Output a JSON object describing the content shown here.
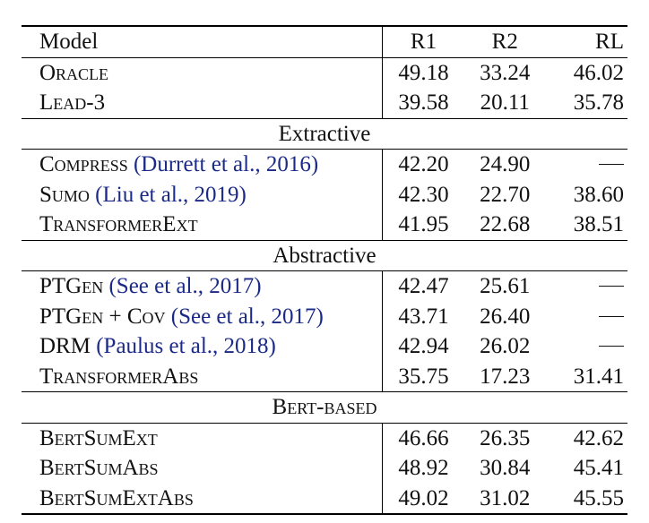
{
  "table": {
    "headers": [
      "Model",
      "R1",
      "R2",
      "RL"
    ],
    "dash": "—",
    "rows_top": [
      {
        "name": "Oracle",
        "cite": "",
        "r1": "49.18",
        "r2": "33.24",
        "rl": "46.02"
      },
      {
        "name": "Lead-3",
        "cite": "",
        "r1": "39.58",
        "r2": "20.11",
        "rl": "35.78"
      }
    ],
    "sections": [
      {
        "title": "Extractive",
        "rows": [
          {
            "name": "Compress",
            "cite": "(Durrett et al., 2016)",
            "r1": "42.20",
            "r2": "24.90",
            "rl": "—"
          },
          {
            "name": "Sumo",
            "cite": "(Liu et al., 2019)",
            "r1": "42.30",
            "r2": "22.70",
            "rl": "38.60"
          },
          {
            "name": "TransformerExt",
            "cite": "",
            "r1": "41.95",
            "r2": "22.68",
            "rl": "38.51"
          }
        ]
      },
      {
        "title": "Abstractive",
        "rows": [
          {
            "name": "PTGen",
            "cite": "(See et al., 2017)",
            "r1": "42.47",
            "r2": "25.61",
            "rl": "—"
          },
          {
            "name": "PTGen + Cov",
            "cite": "(See et al., 2017)",
            "r1": "43.71",
            "r2": "26.40",
            "rl": "—"
          },
          {
            "name": "DRM",
            "cite": "(Paulus et al., 2018)",
            "r1": "42.94",
            "r2": "26.02",
            "rl": "—"
          },
          {
            "name": "TransformerAbs",
            "cite": "",
            "r1": "35.75",
            "r2": "17.23",
            "rl": "31.41"
          }
        ]
      },
      {
        "title": "Bert-based",
        "rows": [
          {
            "name": "BertSumExt",
            "cite": "",
            "r1": "46.66",
            "r2": "26.35",
            "rl": "42.62"
          },
          {
            "name": "BertSumAbs",
            "cite": "",
            "r1": "48.92",
            "r2": "30.84",
            "rl": "45.41"
          },
          {
            "name": "BertSumExtAbs",
            "cite": "",
            "r1": "49.02",
            "r2": "31.02",
            "rl": "45.55"
          }
        ]
      }
    ]
  }
}
